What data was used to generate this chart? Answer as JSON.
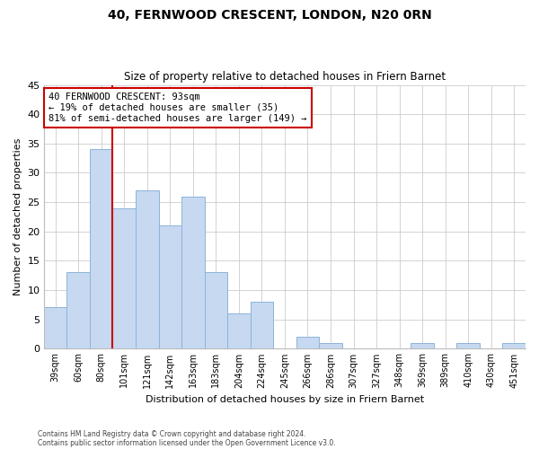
{
  "title": "40, FERNWOOD CRESCENT, LONDON, N20 0RN",
  "subtitle": "Size of property relative to detached houses in Friern Barnet",
  "xlabel": "Distribution of detached houses by size in Friern Barnet",
  "ylabel": "Number of detached properties",
  "categories": [
    "39sqm",
    "60sqm",
    "80sqm",
    "101sqm",
    "121sqm",
    "142sqm",
    "163sqm",
    "183sqm",
    "204sqm",
    "224sqm",
    "245sqm",
    "266sqm",
    "286sqm",
    "307sqm",
    "327sqm",
    "348sqm",
    "369sqm",
    "389sqm",
    "410sqm",
    "430sqm",
    "451sqm"
  ],
  "values": [
    7,
    13,
    34,
    24,
    27,
    21,
    26,
    13,
    6,
    8,
    0,
    2,
    1,
    0,
    0,
    0,
    1,
    0,
    1,
    0,
    1
  ],
  "bar_color": "#c6d9f1",
  "bar_edge_color": "#8db4d9",
  "vline_x_index": 2,
  "marker_label": "40 FERNWOOD CRESCENT: 93sqm",
  "annotation_line1": "← 19% of detached houses are smaller (35)",
  "annotation_line2": "81% of semi-detached houses are larger (149) →",
  "annotation_box_facecolor": "#ffffff",
  "annotation_box_edgecolor": "#cc0000",
  "vline_color": "#cc0000",
  "ylim": [
    0,
    45
  ],
  "yticks": [
    0,
    5,
    10,
    15,
    20,
    25,
    30,
    35,
    40,
    45
  ],
  "footnote_line1": "Contains HM Land Registry data © Crown copyright and database right 2024.",
  "footnote_line2": "Contains public sector information licensed under the Open Government Licence v3.0.",
  "background_color": "#ffffff",
  "grid_color": "#cccccc"
}
